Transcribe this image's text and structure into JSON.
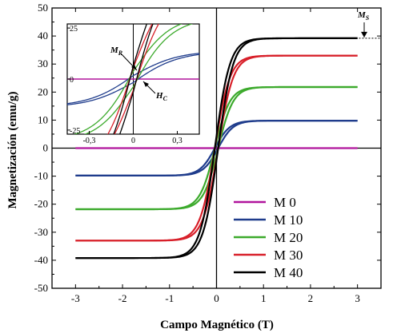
{
  "chart_data": {
    "type": "line",
    "xlabel": "Campo Magnético (T)",
    "ylabel": "Magnetización (emu/g)",
    "xlim": [
      -3.5,
      3.5
    ],
    "ylim": [
      -50,
      50
    ],
    "xticks": [
      -3,
      -2,
      -1,
      0,
      1,
      2,
      3
    ],
    "xtick_labels": [
      "-3",
      "-2",
      "-1",
      "0",
      "1",
      "2",
      "3"
    ],
    "yticks": [
      -50,
      -40,
      -30,
      -20,
      -10,
      0,
      10,
      20,
      30,
      40,
      50
    ],
    "ytick_labels": [
      "-50",
      "-40",
      "-30",
      "-20",
      "-10",
      "0",
      "10",
      "20",
      "30",
      "40",
      "50"
    ],
    "legend_position": "bottom-right",
    "series": [
      {
        "name": "M 0",
        "color": "#b0149c",
        "saturation": 0,
        "h_half": 0.05,
        "x": [
          -3,
          -1,
          0,
          1,
          3
        ],
        "y": [
          0,
          0,
          0,
          0,
          0
        ]
      },
      {
        "name": "M 10",
        "color": "#1f3c8c",
        "saturation": 9.8,
        "h_half": 0.15,
        "x": [
          -3,
          -1,
          -0.5,
          -0.2,
          0,
          0.2,
          0.5,
          1,
          3
        ],
        "y": [
          -9.8,
          -9.6,
          -9.0,
          -6.9,
          0,
          6.9,
          9.0,
          9.6,
          9.8
        ]
      },
      {
        "name": "M 20",
        "color": "#3caa2c",
        "saturation": 21.8,
        "h_half": 0.15,
        "x": [
          -3,
          -1,
          -0.5,
          -0.2,
          0,
          0.2,
          0.5,
          1,
          3
        ],
        "y": [
          -21.8,
          -21.4,
          -20.1,
          -15.3,
          0,
          15.3,
          20.1,
          21.4,
          21.8
        ]
      },
      {
        "name": "M 30",
        "color": "#d8202a",
        "saturation": 33.0,
        "h_half": 0.15,
        "x": [
          -3,
          -1,
          -0.5,
          -0.2,
          0,
          0.2,
          0.5,
          1,
          3
        ],
        "y": [
          -33.0,
          -32.4,
          -30.4,
          -23.2,
          0,
          23.2,
          30.4,
          32.4,
          33.0
        ]
      },
      {
        "name": "M 40",
        "color": "#000000",
        "saturation": 39.2,
        "h_half": 0.15,
        "x": [
          -3,
          -1,
          -0.5,
          -0.2,
          0,
          0.2,
          0.5,
          1,
          3
        ],
        "y": [
          -39.2,
          -38.5,
          -36.1,
          -27.5,
          0,
          27.5,
          36.1,
          38.5,
          39.2
        ]
      }
    ],
    "annotations": [
      {
        "text": "M",
        "sub": "S",
        "target_y": 39.2
      }
    ],
    "inset": {
      "xlim": [
        -0.45,
        0.45
      ],
      "ylim": [
        -27,
        27
      ],
      "xticks": [
        -0.3,
        0,
        0.3
      ],
      "xtick_labels": [
        "-0,3",
        "0",
        "0,3"
      ],
      "yticks": [
        -25,
        0,
        25
      ],
      "ytick_labels": [
        "-25",
        "0",
        "25"
      ],
      "annotations": [
        {
          "text": "M",
          "sub": "R"
        },
        {
          "text": "H",
          "sub": "C"
        }
      ],
      "hysteresis": {
        "remanence": {
          "M 10": 1.7,
          "M 20": 3.8,
          "M 30": 5.5,
          "M 40": 6.5
        },
        "coercivity_T": 0.03
      }
    }
  }
}
